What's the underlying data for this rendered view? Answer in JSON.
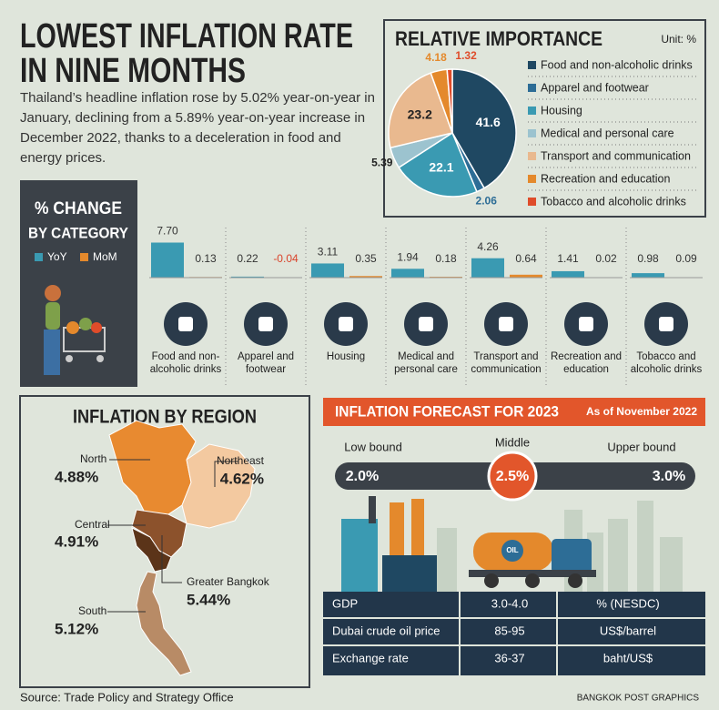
{
  "header": {
    "title_lines": [
      "LOWEST INFLATION RATE",
      "IN NINE MONTHS"
    ],
    "description": "Thailand’s headline inflation rose by 5.02% year-on-year in January, declining from a 5.89% year-on-year increase in December 2022, thanks to a deceleration in food and energy prices."
  },
  "chart_data": [
    {
      "type": "pie",
      "title": "RELATIVE IMPORTANCE",
      "unit": "Unit: %",
      "categories": [
        "Food and non-alcoholic drinks",
        "Apparel and footwear",
        "Housing",
        "Medical and personal care",
        "Transport and communication",
        "Recreation and education",
        "Tobacco and alcoholic drinks"
      ],
      "values": [
        41.6,
        2.06,
        22.1,
        5.39,
        23.2,
        4.18,
        1.32
      ],
      "colors": [
        "#1f4862",
        "#2d6d96",
        "#3a9ab2",
        "#9cc3cf",
        "#e9b98f",
        "#e4892c",
        "#df4c2a"
      ]
    },
    {
      "type": "bar",
      "title_lines": [
        "% CHANGE",
        "BY CATEGORY"
      ],
      "categories": [
        "Food and non-alcoholic drinks",
        "Apparel and footwear",
        "Housing",
        "Medical and personal care",
        "Transport and communication",
        "Recreation and education",
        "Tobacco and alcoholic drinks"
      ],
      "series": [
        {
          "name": "YoY",
          "color": "#3a9ab2",
          "values": [
            7.7,
            0.22,
            3.11,
            1.94,
            4.26,
            1.41,
            0.98
          ],
          "value_labels": [
            "7.70",
            "0.22",
            "3.11",
            "1.94",
            "4.26",
            "1.41",
            "0.98"
          ]
        },
        {
          "name": "MoM",
          "color": "#e4892c",
          "values": [
            0.13,
            -0.04,
            0.35,
            0.18,
            0.64,
            0.02,
            0.09
          ],
          "value_labels": [
            "0.13",
            "-0.04",
            "0.35",
            "0.18",
            "0.64",
            "0.02",
            "0.09"
          ]
        }
      ],
      "negative_label_color": "#d9432b"
    }
  ],
  "region": {
    "title": "INFLATION BY REGION",
    "regions": [
      {
        "name": "North",
        "value": "4.88%",
        "color": "#e88a30"
      },
      {
        "name": "Northeast",
        "value": "4.62%",
        "color": "#f3c9a0"
      },
      {
        "name": "Central",
        "value": "4.91%",
        "color": "#8c522c"
      },
      {
        "name": "Greater Bangkok",
        "value": "5.44%",
        "color": "#5b3419"
      },
      {
        "name": "South",
        "value": "5.12%",
        "color": "#b88b66"
      }
    ]
  },
  "forecast": {
    "title": "INFLATION FORECAST FOR 2023",
    "as_of": "As of November 2022",
    "bounds": [
      {
        "label": "Low bound",
        "value": "2.0%"
      },
      {
        "label": "Middle",
        "value": "2.5%"
      },
      {
        "label": "Upper bound",
        "value": "3.0%"
      }
    ],
    "truck_label": "OIL",
    "table": {
      "rows": [
        [
          "GDP",
          "3.0-4.0",
          "% (NESDC)"
        ],
        [
          "Dubai crude oil price",
          "85-95",
          "US$/barrel"
        ],
        [
          "Exchange rate",
          "36-37",
          "baht/US$"
        ]
      ]
    }
  },
  "footer": {
    "source": "Source: Trade Policy and Strategy Office",
    "credit": "BANGKOK POST GRAPHICS"
  }
}
